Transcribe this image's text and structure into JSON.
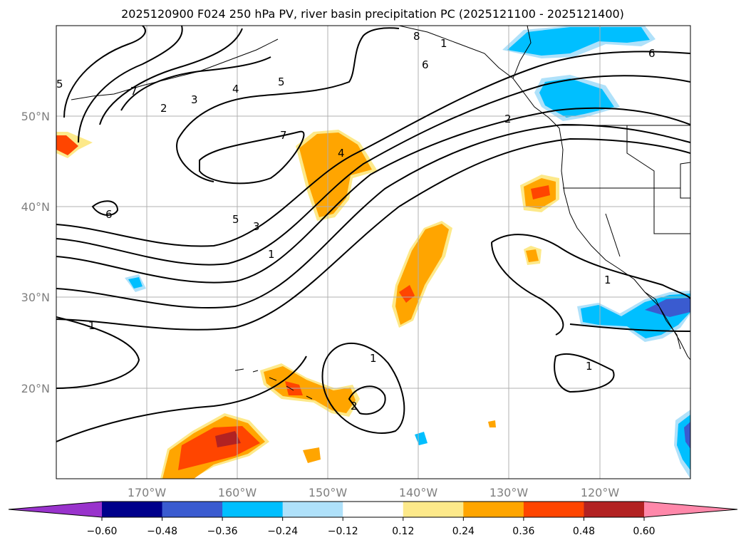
{
  "title": "2025120900 F024 250 hPa PV, river basin precipitation PC (2025121100 - 2025121400)",
  "lat_labels": [
    "50°N",
    "40°N",
    "30°N",
    "20°N"
  ],
  "lon_labels": [
    "170°W",
    "160°W",
    "150°W",
    "140°W",
    "130°W",
    "120°W"
  ],
  "colorbar": {
    "ticks": [
      "−0.60",
      "−0.48",
      "−0.36",
      "−0.24",
      "−0.12",
      "0.12",
      "0.24",
      "0.36",
      "0.48",
      "0.60"
    ],
    "colors": [
      "#9933cc",
      "#00008b",
      "#3a5bd0",
      "#00bfff",
      "#afe1fa",
      "#ffffff",
      "#fde98a",
      "#ffa500",
      "#ff4500",
      "#b22222",
      "#ff88aa"
    ]
  },
  "contour_labels": [
    "8",
    "1",
    "6",
    "6",
    "5",
    "5",
    "4",
    "4",
    "3",
    "3",
    "2",
    "2",
    "7",
    "7",
    "6",
    "1",
    "1",
    "1",
    "1",
    "1",
    "2",
    "5"
  ],
  "map": {
    "region": "North Pacific and western North America",
    "lon_range": [
      -180,
      -110
    ],
    "lat_range": [
      10,
      60
    ],
    "gridlines": true
  }
}
